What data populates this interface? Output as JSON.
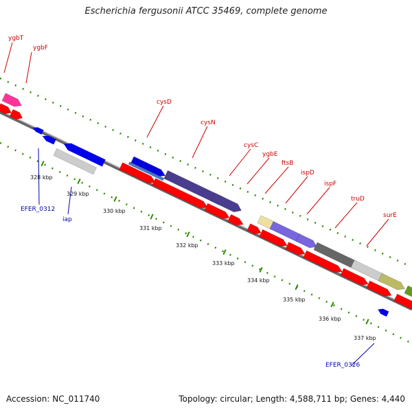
{
  "title": "Escherichia fergusonii ATCC 35469, complete genome",
  "footer": {
    "accession": "Accession: NC_011740",
    "summary": "Topology: circular; Length: 4,588,711 bp; Genes: 4,440"
  },
  "colors": {
    "cds_red": "#ff0000",
    "forward_blue": "#0000ee",
    "backbone": "#888888",
    "dotted_track": "#2e8b00",
    "label_red": "#cc0000",
    "label_blue": "#0000aa"
  },
  "tick_labels": [
    "328 kbp",
    "329 kbp",
    "330 kbp",
    "331 kbp",
    "332 kbp",
    "333 kbp",
    "334 kbp",
    "335 kbp",
    "336 kbp",
    "337 kbp"
  ],
  "gene_labels_top": [
    "ygbT",
    "ygbF",
    "cysD",
    "cysN",
    "cysC",
    "ygbE",
    "ftsB",
    "ispD",
    "ispF",
    "truD",
    "surE"
  ],
  "gene_labels_bottom": [
    "EFER_0312",
    "iap",
    "EFER_0326"
  ]
}
